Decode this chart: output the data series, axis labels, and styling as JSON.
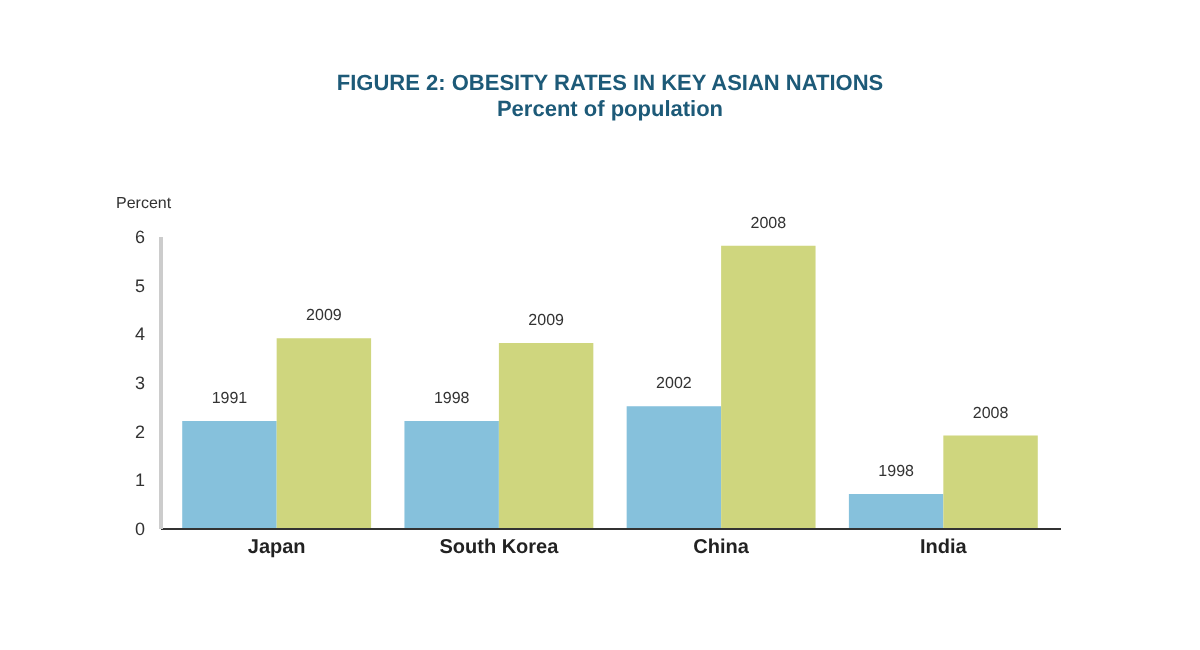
{
  "chart_data": {
    "type": "bar",
    "title": "FIGURE 2: OBESITY RATES IN KEY ASIAN NATIONS",
    "subtitle": "Percent of population",
    "ylabel": "Percent",
    "categories": [
      "Japan",
      "South Korea",
      "China",
      "India"
    ],
    "series": [
      {
        "color": "#86c1dc",
        "values": [
          2.2,
          2.2,
          2.5,
          0.7
        ]
      },
      {
        "color": "#cfd67e",
        "values": [
          3.9,
          3.8,
          5.8,
          1.9
        ]
      }
    ],
    "annotations": [
      {
        "text": "1991",
        "x": "Japan",
        "y": 2.2
      },
      {
        "text": "2009",
        "x": "Japan",
        "y": 3.9
      },
      {
        "text": "1998",
        "x": "South Korea",
        "y": 2.2
      },
      {
        "text": "2009",
        "x": "South Korea",
        "y": 3.8
      },
      {
        "text": "2002",
        "x": "China",
        "y": 2.5
      },
      {
        "text": "2008",
        "x": "China",
        "y": 5.8
      },
      {
        "text": "1998",
        "x": "India",
        "y": 0.7
      },
      {
        "text": "2008",
        "x": "India",
        "y": 1.9
      }
    ],
    "ylim": [
      0,
      6
    ],
    "yticks": [
      0,
      1,
      2,
      3,
      4,
      5,
      6
    ],
    "grid": false,
    "legend": false
  }
}
